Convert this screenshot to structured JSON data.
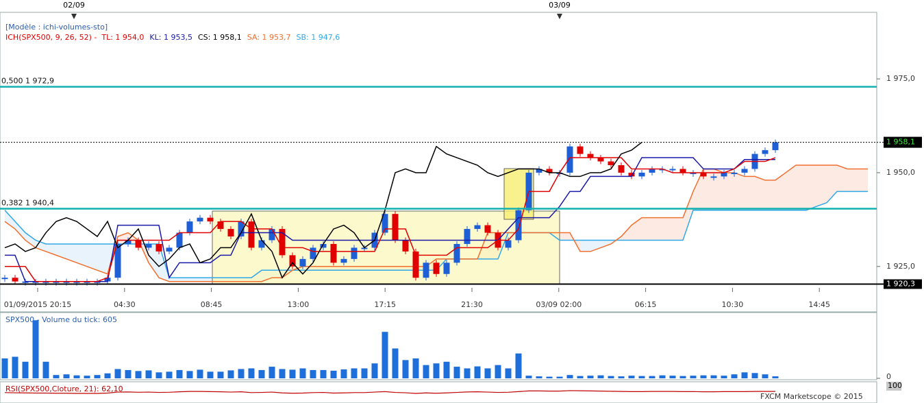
{
  "chart_data": {
    "type": "candlestick",
    "date_markers": [
      "02/09",
      "03/09"
    ],
    "model": "[Modèle : ichi-volumes-sto]",
    "indicator": "ICH(SPX500, 9, 26, 52) -",
    "up_color": "#1f5fd6",
    "down_color": "#e00000",
    "closes": [
      1922,
      1921,
      1921,
      1921,
      1921,
      1921,
      1921,
      1921,
      1921,
      1921,
      1922,
      1931,
      1932,
      1930,
      1931,
      1929,
      1930,
      1934,
      1937,
      1938,
      1937,
      1935,
      1933,
      1937,
      1930,
      1932,
      1935,
      1928,
      1925,
      1927,
      1930,
      1931,
      1926,
      1927,
      1930,
      1930,
      1934,
      1939,
      1932,
      1929,
      1922,
      1926,
      1923,
      1926,
      1931,
      1935,
      1936,
      1934,
      1930,
      1932,
      1940,
      1950,
      1951,
      1950,
      1950,
      1957,
      1955,
      1954,
      1953,
      1952,
      1950,
      1949,
      1950,
      1951,
      1951,
      1951,
      1950,
      1950,
      1949,
      1949,
      1950,
      1950,
      1951,
      1955,
      1956,
      1958.1
    ],
    "lines": [
      {
        "name": "TL: 1 954,0",
        "color": "#e00000",
        "values": [
          1925,
          1925,
          1925,
          1921,
          1921,
          1921,
          1921,
          1921,
          1921,
          1921,
          1922,
          1932,
          1932,
          1932,
          1932,
          1932,
          1932,
          1934,
          1934,
          1934,
          1934,
          1937,
          1937,
          1937,
          1935,
          1935,
          1935,
          1930,
          1930,
          1930,
          1929,
          1929,
          1929,
          1929,
          1929,
          1929,
          1929,
          1935,
          1935,
          1935,
          1928,
          1928,
          1928,
          1928,
          1930,
          1930,
          1930,
          1930,
          1932,
          1932,
          1935,
          1945,
          1945,
          1945,
          1950,
          1954,
          1954,
          1954,
          1954,
          1954,
          1954,
          1951,
          1951,
          1951,
          1951,
          1950,
          1950,
          1950,
          1950,
          1950,
          1950,
          1951,
          1953,
          1953,
          1953,
          1954
        ]
      },
      {
        "name": "KL: 1 953,5",
        "color": "#1a1aa8",
        "values": [
          1928,
          1928,
          1921,
          1921,
          1921,
          1921,
          1921,
          1921,
          1921,
          1921,
          1921,
          1936,
          1936,
          1936,
          1936,
          1936,
          1922,
          1926,
          1926,
          1926,
          1926,
          1928,
          1928,
          1934,
          1934,
          1934,
          1934,
          1934,
          1932,
          1932,
          1932,
          1932,
          1932,
          1932,
          1932,
          1932,
          1932,
          1932,
          1932,
          1932,
          1932,
          1932,
          1932,
          1932,
          1932,
          1932,
          1932,
          1932,
          1932,
          1935,
          1938,
          1938,
          1938,
          1938,
          1941,
          1945,
          1945,
          1949,
          1949,
          1949,
          1949,
          1949,
          1954,
          1954,
          1954,
          1954,
          1954,
          1954,
          1951,
          1951,
          1951,
          1951,
          1953.5,
          1953.5,
          1953.5,
          1953.5
        ]
      },
      {
        "name": "CS: 1 958,1",
        "color": "#000000"
      },
      {
        "name": "SA: 1 953,7",
        "color": "#f07030",
        "values": [
          1937,
          1935,
          1932,
          1930,
          1929,
          1928,
          1927,
          1926,
          1925,
          1924,
          1923,
          1933,
          1934,
          1932,
          1926,
          1922,
          1921,
          1921,
          1921,
          1921,
          1921,
          1921,
          1921,
          1921,
          1921,
          1921,
          1922,
          1922,
          1924,
          1925,
          1925,
          1925,
          1925,
          1925,
          1925,
          1925,
          1925,
          1925,
          1925,
          1925,
          1925,
          1925,
          1927,
          1927,
          1927,
          1927,
          1927,
          1934,
          1934,
          1934,
          1934,
          1934,
          1934,
          1934,
          1934,
          1934,
          1929,
          1929,
          1930,
          1931,
          1933,
          1936,
          1938,
          1938,
          1938,
          1938,
          1938,
          1945,
          1951,
          1951,
          1950,
          1950,
          1949,
          1949,
          1948,
          1948,
          1950,
          1952,
          1952,
          1952,
          1952,
          1952,
          1951,
          1951,
          1951
        ]
      },
      {
        "name": "SB: 1 947,6",
        "color": "#30a8e8",
        "values": [
          1940,
          1937,
          1934,
          1932,
          1931,
          1931,
          1931,
          1931,
          1931,
          1931,
          1931,
          1931,
          1931,
          1931,
          1931,
          1931,
          1922,
          1922,
          1922,
          1922,
          1922,
          1922,
          1922,
          1922,
          1922,
          1924,
          1924,
          1924,
          1924,
          1924,
          1924,
          1924,
          1924,
          1924,
          1924,
          1924,
          1924,
          1924,
          1924,
          1924,
          1924,
          1924,
          1924,
          1927,
          1927,
          1927,
          1927,
          1927,
          1927,
          1934,
          1934,
          1934,
          1934,
          1934,
          1932,
          1932,
          1932,
          1932,
          1932,
          1932,
          1932,
          1932,
          1932,
          1932,
          1932,
          1932,
          1932,
          1940,
          1940,
          1940,
          1940,
          1940,
          1940,
          1940,
          1940,
          1940,
          1940,
          1940,
          1940,
          1941,
          1942,
          1945,
          1945,
          1945,
          1945
        ]
      }
    ],
    "ylim": [
      1919.3,
      1990
    ],
    "yticks": [
      {
        "value": 1975,
        "label": "1 975,0"
      },
      {
        "value": 1950,
        "label": "1 950,0"
      },
      {
        "value": 1925,
        "label": "1 925,0"
      }
    ],
    "levels": [
      {
        "value": 1972.9,
        "label": "0,500 1 972,9",
        "color": "#14b0b0"
      },
      {
        "value": 1940.4,
        "label": "0,382 1 940,4",
        "color": "#14b0b0"
      }
    ],
    "last_price": {
      "value": 1958.1,
      "label": "1 958,1"
    },
    "low_line": {
      "value": 1920.3,
      "label": "1 920,3"
    },
    "xtick_labels": [
      "01/09/2015 20:15",
      "04:30",
      "08:45",
      "13:00",
      "17:15",
      "21:30",
      "03/09 02:00",
      "06:15",
      "10:30",
      "14:45"
    ],
    "volume": {
      "title": "SPX500 - Volume du tick: 605",
      "color": "#1e6fd9",
      "ylim": [
        0,
        19000
      ],
      "yticks": [
        0
      ],
      "values": [
        6000,
        6500,
        5000,
        17500,
        5000,
        1000,
        1200,
        900,
        800,
        1000,
        1500,
        2800,
        2500,
        2200,
        2400,
        1800,
        2000,
        2500,
        2200,
        2600,
        2000,
        2000,
        2400,
        2800,
        3000,
        2500,
        3500,
        2800,
        2600,
        3000,
        2500,
        2500,
        2300,
        2700,
        3000,
        3000,
        4500,
        14000,
        9000,
        5500,
        6000,
        4000,
        4500,
        5000,
        3500,
        3000,
        3600,
        3000,
        4000,
        3000,
        7500,
        800,
        600,
        500,
        500,
        1000,
        700,
        800,
        900,
        700,
        600,
        800,
        700,
        700,
        900,
        800,
        700,
        800,
        900,
        900,
        800,
        1200,
        1800,
        1600,
        1200,
        605
      ]
    },
    "rsi": {
      "title": "RSI(SPX500,Cloture, 21): 62,10",
      "color": "#c00000",
      "ylim": [
        0,
        100
      ],
      "yticks": [
        100
      ],
      "values": [
        55,
        54,
        53,
        52,
        52,
        51,
        51,
        50,
        50,
        50,
        52,
        58,
        59,
        57,
        58,
        56,
        57,
        60,
        62,
        62,
        61,
        60,
        58,
        60,
        55,
        56,
        58,
        53,
        51,
        52,
        55,
        56,
        52,
        53,
        55,
        55,
        58,
        61,
        56,
        54,
        50,
        53,
        51,
        53,
        56,
        59,
        60,
        58,
        56,
        57,
        61,
        65,
        65,
        64,
        64,
        67,
        66,
        65,
        64,
        63,
        62,
        61,
        61,
        62,
        62,
        62,
        61,
        61,
        60,
        60,
        61,
        61,
        61,
        62,
        62,
        62.1
      ]
    },
    "footer": "FXCM Marketscope © 2015"
  }
}
